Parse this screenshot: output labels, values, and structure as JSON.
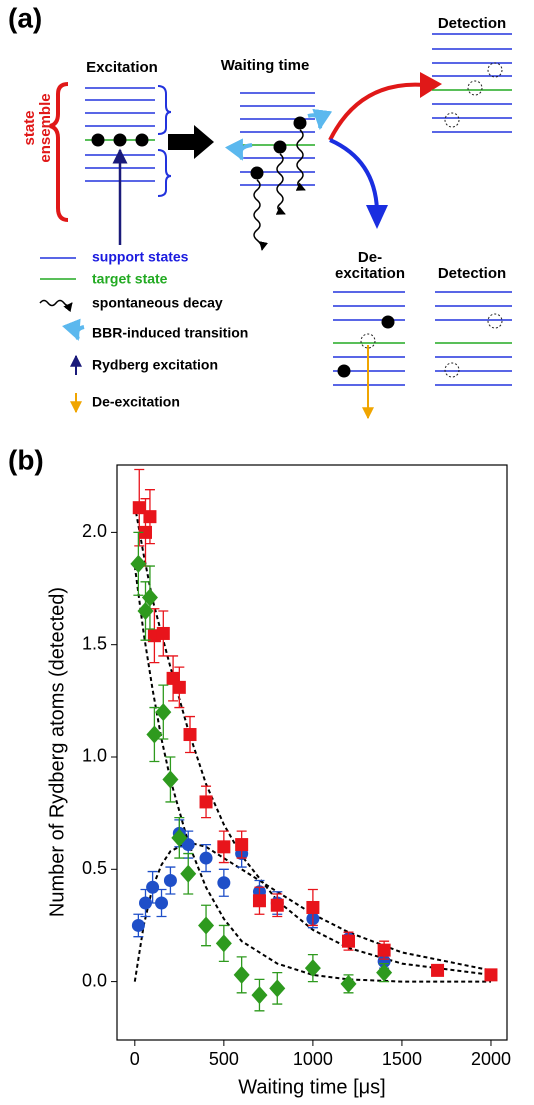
{
  "panel_a": {
    "label": "(a)",
    "excitation": "Excitation",
    "waiting": "Waiting time",
    "detection_top": "Detection",
    "state_ensemble": [
      "state",
      "ensemble"
    ],
    "de_excitation_title": [
      "De-",
      "excitation"
    ],
    "detection_bottom": "Detection",
    "legend": [
      "support states",
      "target state",
      "spontaneous decay",
      "BBR-induced transition",
      "Rydberg excitation",
      "De-excitation"
    ]
  },
  "panel_b": {
    "label": "(b)"
  },
  "chart_data": {
    "type": "scatter",
    "xlabel": "Waiting time [μs]",
    "ylabel": "Number of Rydberg atoms (detected)",
    "xlim": [
      -100,
      2090
    ],
    "ylim": [
      -0.26,
      2.3
    ],
    "xticks": [
      0,
      500,
      1000,
      1500,
      2000
    ],
    "yticks": [
      {
        "value": 0,
        "label": "0.0"
      },
      {
        "value": 0.5,
        "label": "0.5"
      },
      {
        "value": 1,
        "label": "1.0"
      },
      {
        "value": 1.5,
        "label": "1.5"
      },
      {
        "value": 2,
        "label": "2.0"
      }
    ],
    "fits": [
      {
        "color": "#000000",
        "line_style": "dashed",
        "x": [
          0,
          50,
          100,
          150,
          200,
          300,
          400,
          500,
          600,
          800,
          1000,
          1200,
          1500,
          2000
        ],
        "values": [
          2.12,
          1.9,
          1.7,
          1.55,
          1.4,
          1.12,
          0.88,
          0.7,
          0.56,
          0.36,
          0.23,
          0.15,
          0.08,
          0.03
        ]
      },
      {
        "color": "#000000",
        "line_style": "dashed",
        "x": [
          0,
          50,
          100,
          150,
          200,
          300,
          400,
          500,
          600,
          800,
          1000,
          1200,
          1500,
          2000
        ],
        "values": [
          0,
          0.25,
          0.42,
          0.52,
          0.58,
          0.62,
          0.6,
          0.55,
          0.5,
          0.4,
          0.3,
          0.22,
          0.13,
          0.05
        ]
      },
      {
        "color": "#000000",
        "line_style": "dashed",
        "x": [
          0,
          50,
          100,
          150,
          200,
          300,
          400,
          500,
          600,
          800,
          1000,
          1200,
          1500,
          2000
        ],
        "values": [
          1.85,
          1.55,
          1.3,
          1.08,
          0.9,
          0.62,
          0.42,
          0.28,
          0.18,
          0.08,
          0.03,
          0.01,
          0,
          0
        ]
      }
    ],
    "series": [
      {
        "marker": "circle",
        "color": "#1f4fc8",
        "x": [
          20,
          60,
          100,
          150,
          200,
          250,
          300,
          400,
          500,
          600,
          700,
          800,
          1000,
          1200,
          1400
        ],
        "values": [
          0.25,
          0.35,
          0.42,
          0.35,
          0.45,
          0.66,
          0.61,
          0.55,
          0.44,
          0.57,
          0.4,
          0.35,
          0.28,
          0.19,
          0.09
        ],
        "errors": [
          0.05,
          0.06,
          0.07,
          0.06,
          0.06,
          0.06,
          0.06,
          0.06,
          0.06,
          0.06,
          0.05,
          0.05,
          0.04,
          0.03,
          0.03
        ]
      },
      {
        "marker": "square",
        "color": "#e8141b",
        "x": [
          25,
          60,
          85,
          110,
          160,
          215,
          250,
          310,
          400,
          500,
          600,
          700,
          800,
          1000,
          1200,
          1400,
          1700,
          2000
        ],
        "values": [
          2.11,
          2.0,
          2.07,
          1.54,
          1.55,
          1.35,
          1.31,
          1.1,
          0.8,
          0.6,
          0.61,
          0.36,
          0.34,
          0.33,
          0.18,
          0.14,
          0.05,
          0.03
        ],
        "errors": [
          0.17,
          0.15,
          0.12,
          0.12,
          0.1,
          0.1,
          0.09,
          0.08,
          0.07,
          0.07,
          0.06,
          0.06,
          0.05,
          0.08,
          0.04,
          0.04,
          0.02,
          0.02
        ]
      },
      {
        "marker": "diamond",
        "color": "#2e9a1e",
        "x": [
          20,
          60,
          85,
          110,
          160,
          200,
          250,
          300,
          400,
          500,
          600,
          700,
          800,
          1000,
          1200,
          1400
        ],
        "values": [
          1.86,
          1.65,
          1.71,
          1.1,
          1.2,
          0.9,
          0.64,
          0.48,
          0.25,
          0.17,
          0.03,
          -0.06,
          -0.03,
          0.06,
          -0.01,
          0.04
        ],
        "errors": [
          0.14,
          0.13,
          0.14,
          0.12,
          0.12,
          0.1,
          0.09,
          0.09,
          0.09,
          0.08,
          0.08,
          0.07,
          0.07,
          0.06,
          0.04,
          0.04
        ]
      }
    ]
  }
}
